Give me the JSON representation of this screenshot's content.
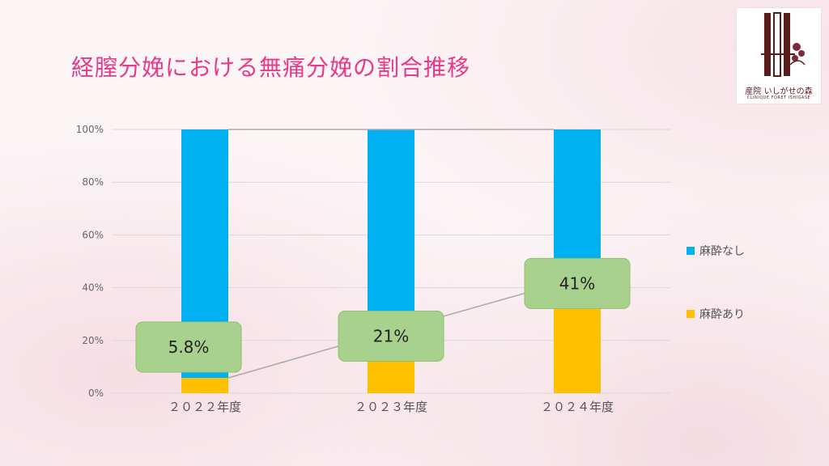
{
  "title": "経膣分娩における無痛分娩の割合推移",
  "logo": {
    "jp": "産院 いしがせの森",
    "en": "CLINIQUE FORET ISHIGASE"
  },
  "colors": {
    "no_anesthesia": "#00b0f0",
    "anesthesia": "#ffc000",
    "label_box": "#a9d18e",
    "title": "#e8398a"
  },
  "chart_data": {
    "type": "bar",
    "stacked": true,
    "categories": [
      "２０２２年度",
      "２０２３年度",
      "２０２４年度"
    ],
    "series": [
      {
        "name": "麻酔あり",
        "values": [
          5.8,
          21,
          41
        ]
      },
      {
        "name": "麻酔なし",
        "values": [
          94.2,
          79,
          59
        ]
      }
    ],
    "data_labels": [
      "5.8%",
      "21%",
      "41%"
    ],
    "yticks": [
      "0%",
      "20%",
      "40%",
      "60%",
      "80%",
      "100%"
    ],
    "ylim": [
      0,
      100
    ],
    "grid": true,
    "legend_position": "right"
  }
}
